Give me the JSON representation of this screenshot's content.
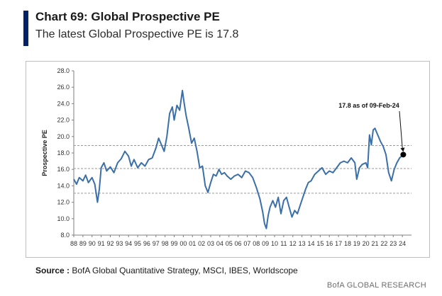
{
  "header": {
    "title": "Chart 69: Global Prospective PE",
    "subtitle": "The latest Global Prospective PE is 17.8"
  },
  "footer": {
    "source_label": "Source",
    "source_text": "BofA Global Quantitative Strategy, MSCI, IBES, Worldscope",
    "brand": "BofA GLOBAL RESEARCH"
  },
  "colors": {
    "accent": "#012169",
    "line": "#3a6fa8",
    "grid": "#9a9a9a",
    "marker": "#000000"
  },
  "chart_data": {
    "type": "line",
    "title": "",
    "xlabel": "",
    "ylabel": "Prospective PE",
    "ylim": [
      8.0,
      28.0
    ],
    "yticks": [
      8.0,
      10.0,
      12.0,
      14.0,
      16.0,
      18.0,
      20.0,
      22.0,
      24.0,
      26.0,
      28.0
    ],
    "ytick_labels": [
      "8.0",
      "10.0",
      "12.0",
      "14.0",
      "16.0",
      "18.0",
      "20.0",
      "22.0",
      "24.0",
      "26.0",
      "28.0"
    ],
    "xlim": [
      1988,
      2025
    ],
    "xticks": [
      1988,
      1989,
      1990,
      1991,
      1992,
      1993,
      1994,
      1995,
      1996,
      1997,
      1998,
      1999,
      2000,
      2001,
      2002,
      2003,
      2004,
      2005,
      2006,
      2007,
      2008,
      2009,
      2010,
      2011,
      2012,
      2013,
      2014,
      2015,
      2016,
      2017,
      2018,
      2019,
      2020,
      2021,
      2022,
      2023,
      2024
    ],
    "xtick_labels": [
      "88",
      "89",
      "90",
      "91",
      "92",
      "93",
      "94",
      "95",
      "96",
      "97",
      "98",
      "99",
      "00",
      "01",
      "02",
      "03",
      "04",
      "05",
      "06",
      "07",
      "08",
      "09",
      "10",
      "11",
      "12",
      "13",
      "14",
      "15",
      "16",
      "17",
      "18",
      "19",
      "20",
      "21",
      "22",
      "23",
      "24"
    ],
    "reference_lines": [
      18.9,
      16.1,
      13.1
    ],
    "grid": false,
    "annotation": {
      "text": "17.8 as of 09-Feb-24",
      "x": 2024.1,
      "y": 17.8
    },
    "series": [
      {
        "x": [
          1988.0,
          1988.3,
          1988.6,
          1989.0,
          1989.3,
          1989.6,
          1990.0,
          1990.3,
          1990.6,
          1990.8,
          1991.0,
          1991.3,
          1991.6,
          1992.0,
          1992.4,
          1992.8,
          1993.2,
          1993.6,
          1994.0,
          1994.3,
          1994.6,
          1995.0,
          1995.4,
          1995.8,
          1996.2,
          1996.6,
          1997.0,
          1997.3,
          1997.6,
          1997.9,
          1998.2,
          1998.5,
          1998.8,
          1999.0,
          1999.3,
          1999.6,
          1999.9,
          2000.1,
          2000.3,
          2000.6,
          2000.9,
          2001.2,
          2001.5,
          2001.8,
          2002.1,
          2002.4,
          2002.7,
          2003.0,
          2003.3,
          2003.6,
          2003.9,
          2004.2,
          2004.5,
          2004.8,
          2005.2,
          2005.6,
          2006.0,
          2006.4,
          2006.8,
          2007.2,
          2007.6,
          2008.0,
          2008.4,
          2008.7,
          2008.9,
          2009.1,
          2009.3,
          2009.5,
          2009.8,
          2010.1,
          2010.4,
          2010.7,
          2011.0,
          2011.3,
          2011.6,
          2011.9,
          2012.2,
          2012.5,
          2012.8,
          2013.1,
          2013.4,
          2013.7,
          2014.0,
          2014.4,
          2014.8,
          2015.2,
          2015.6,
          2016.0,
          2016.4,
          2016.8,
          2017.2,
          2017.6,
          2018.0,
          2018.4,
          2018.8,
          2019.0,
          2019.3,
          2019.6,
          2020.0,
          2020.2,
          2020.4,
          2020.6,
          2020.8,
          2021.0,
          2021.3,
          2021.6,
          2021.9,
          2022.2,
          2022.5,
          2022.8,
          2023.1,
          2023.4,
          2023.7,
          2024.1
        ],
        "y": [
          14.8,
          14.2,
          15.0,
          14.6,
          15.3,
          14.4,
          15.0,
          14.2,
          12.0,
          13.6,
          16.2,
          16.8,
          15.8,
          16.3,
          15.6,
          16.8,
          17.3,
          18.2,
          17.6,
          16.4,
          17.2,
          16.2,
          16.8,
          16.4,
          17.2,
          17.4,
          18.6,
          19.8,
          19.0,
          18.2,
          20.0,
          22.8,
          23.6,
          22.0,
          23.8,
          23.2,
          25.6,
          24.0,
          22.6,
          21.0,
          19.2,
          19.8,
          18.2,
          16.2,
          16.4,
          14.0,
          13.2,
          14.4,
          15.4,
          15.2,
          16.0,
          15.4,
          15.6,
          15.2,
          14.8,
          15.2,
          15.4,
          15.0,
          15.8,
          15.6,
          15.0,
          13.8,
          12.4,
          10.8,
          9.4,
          8.8,
          10.4,
          11.4,
          12.2,
          11.4,
          12.6,
          10.6,
          12.2,
          12.6,
          11.4,
          10.2,
          11.0,
          10.6,
          11.6,
          12.6,
          13.6,
          14.4,
          14.6,
          15.4,
          15.8,
          16.2,
          15.4,
          15.8,
          15.6,
          16.2,
          16.8,
          17.0,
          16.8,
          17.4,
          16.8,
          14.8,
          16.2,
          16.6,
          16.8,
          16.2,
          20.2,
          19.0,
          20.8,
          21.0,
          20.2,
          19.4,
          18.8,
          17.8,
          15.6,
          14.6,
          16.0,
          16.8,
          17.4,
          17.8
        ]
      }
    ]
  }
}
